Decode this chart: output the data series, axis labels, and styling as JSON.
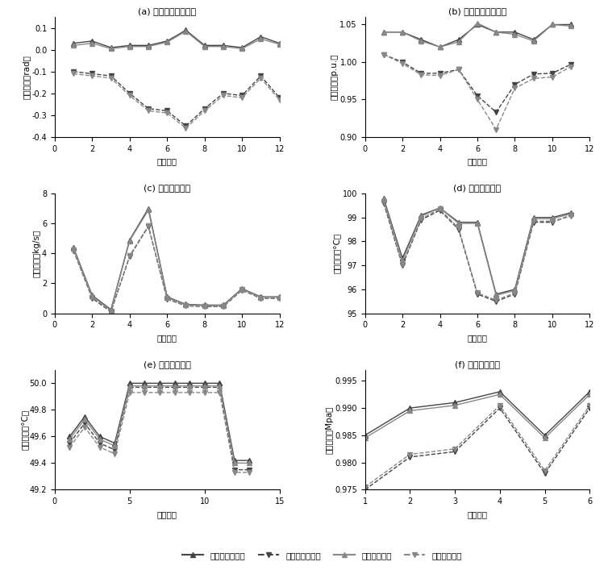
{
  "subplot_a": {
    "title": "(a) 电网节点电压相角",
    "xlabel": "节点编号",
    "ylabel": "电压相角（rad）",
    "xlim": [
      0,
      12
    ],
    "ylim": [
      -0.4,
      0.15
    ],
    "yticks": [
      -0.4,
      -0.3,
      -0.2,
      -0.1,
      0.0,
      0.1
    ],
    "xticks": [
      0,
      2,
      4,
      6,
      8,
      10,
      12
    ],
    "mc_upper": {
      "x": [
        1,
        2,
        3,
        4,
        5,
        6,
        7,
        8,
        9,
        10,
        11,
        12
      ],
      "y": [
        0.03,
        0.04,
        0.01,
        0.02,
        0.02,
        0.04,
        0.09,
        0.02,
        0.02,
        0.01,
        0.06,
        0.03
      ]
    },
    "mc_lower": {
      "x": [
        1,
        2,
        3,
        4,
        5,
        6,
        7,
        8,
        9,
        10,
        11,
        12
      ],
      "y": [
        -0.1,
        -0.11,
        -0.12,
        -0.2,
        -0.27,
        -0.28,
        -0.35,
        -0.27,
        -0.2,
        -0.21,
        -0.12,
        -0.22
      ]
    },
    "prop_upper": {
      "x": [
        1,
        2,
        3,
        4,
        5,
        6,
        7,
        8,
        9,
        10,
        11,
        12
      ],
      "y": [
        0.02,
        0.03,
        0.005,
        0.015,
        0.015,
        0.035,
        0.085,
        0.015,
        0.015,
        0.005,
        0.05,
        0.025
      ]
    },
    "prop_lower": {
      "x": [
        1,
        2,
        3,
        4,
        5,
        6,
        7,
        8,
        9,
        10,
        11,
        12
      ],
      "y": [
        -0.11,
        -0.12,
        -0.13,
        -0.21,
        -0.28,
        -0.29,
        -0.36,
        -0.28,
        -0.21,
        -0.22,
        -0.13,
        -0.23
      ]
    }
  },
  "subplot_b": {
    "title": "(b) 电网节点电压幅值",
    "xlabel": "节点编号",
    "ylabel": "电压幅值（p.u.）",
    "xlim": [
      0,
      12
    ],
    "ylim": [
      0.9,
      1.06
    ],
    "yticks": [
      0.9,
      0.95,
      1.0,
      1.05
    ],
    "xticks": [
      0,
      2,
      4,
      6,
      8,
      10,
      12
    ],
    "mc_upper": {
      "x": [
        1,
        2,
        3,
        4,
        5,
        6,
        7,
        8,
        9,
        10,
        11
      ],
      "y": [
        1.04,
        1.04,
        1.03,
        1.02,
        1.03,
        1.05,
        1.04,
        1.04,
        1.03,
        1.05,
        1.05
      ]
    },
    "mc_lower": {
      "x": [
        1,
        2,
        3,
        4,
        5,
        6,
        7,
        8,
        9,
        10,
        11
      ],
      "y": [
        1.01,
        1.0,
        0.985,
        0.985,
        0.99,
        0.955,
        0.933,
        0.97,
        0.984,
        0.985,
        0.997
      ]
    },
    "prop_upper": {
      "x": [
        1,
        2,
        3,
        4,
        5,
        6,
        7,
        8,
        9,
        10,
        11
      ],
      "y": [
        1.04,
        1.04,
        1.028,
        1.02,
        1.027,
        1.052,
        1.04,
        1.037,
        1.028,
        1.05,
        1.048
      ]
    },
    "prop_lower": {
      "x": [
        1,
        2,
        3,
        4,
        5,
        6,
        7,
        8,
        9,
        10,
        11
      ],
      "y": [
        1.01,
        0.998,
        0.983,
        0.982,
        0.99,
        0.95,
        0.91,
        0.965,
        0.978,
        0.98,
        0.994
      ]
    }
  },
  "subplot_c": {
    "title": "(c) 热网管道流量",
    "xlabel": "管道编号",
    "ylabel": "质量流量（kg/s）",
    "xlim": [
      0,
      12
    ],
    "ylim": [
      0,
      8
    ],
    "yticks": [
      0,
      2,
      4,
      6,
      8
    ],
    "xticks": [
      0,
      2,
      4,
      6,
      8,
      10,
      12
    ],
    "mc_upper": {
      "x": [
        1,
        2,
        3,
        4,
        5,
        6,
        7,
        8,
        9,
        10,
        11,
        12
      ],
      "y": [
        4.4,
        1.2,
        0.25,
        4.9,
        7.0,
        1.1,
        0.6,
        0.55,
        0.55,
        1.65,
        1.1,
        1.1
      ]
    },
    "mc_lower": {
      "x": [
        1,
        2,
        3,
        4,
        5,
        6,
        7,
        8,
        9,
        10,
        11,
        12
      ],
      "y": [
        4.2,
        1.0,
        0.1,
        3.8,
        5.8,
        0.95,
        0.5,
        0.45,
        0.45,
        1.55,
        1.0,
        1.0
      ]
    },
    "prop_upper": {
      "x": [
        1,
        2,
        3,
        4,
        5,
        6,
        7,
        8,
        9,
        10,
        11,
        12
      ],
      "y": [
        4.35,
        1.15,
        0.2,
        4.85,
        6.9,
        1.05,
        0.58,
        0.52,
        0.52,
        1.62,
        1.08,
        1.08
      ]
    },
    "prop_lower": {
      "x": [
        1,
        2,
        3,
        4,
        5,
        6,
        7,
        8,
        9,
        10,
        11,
        12
      ],
      "y": [
        4.25,
        1.05,
        0.15,
        3.85,
        5.85,
        0.98,
        0.52,
        0.47,
        0.47,
        1.57,
        1.02,
        1.02
      ]
    }
  },
  "subplot_d": {
    "title": "(d) 热网供热温度",
    "xlabel": "节点编号",
    "ylabel": "供热温度（°C）",
    "xlim": [
      0,
      12
    ],
    "ylim": [
      95,
      100
    ],
    "yticks": [
      95,
      96,
      97,
      98,
      99,
      100
    ],
    "xticks": [
      0,
      2,
      4,
      6,
      8,
      10,
      12
    ],
    "mc_upper": {
      "x": [
        1,
        2,
        3,
        4,
        5,
        6,
        7,
        8,
        9,
        10,
        11
      ],
      "y": [
        99.8,
        97.3,
        99.1,
        99.4,
        98.8,
        98.8,
        95.8,
        96.0,
        99.0,
        99.0,
        99.2
      ]
    },
    "mc_lower": {
      "x": [
        1,
        2,
        3,
        4,
        5,
        6,
        7,
        8,
        9,
        10,
        11
      ],
      "y": [
        99.6,
        97.0,
        98.9,
        99.3,
        98.5,
        95.8,
        95.5,
        95.8,
        98.8,
        98.8,
        99.1
      ]
    },
    "prop_upper": {
      "x": [
        1,
        2,
        3,
        4,
        5,
        6,
        7,
        8,
        9,
        10,
        11
      ],
      "y": [
        99.75,
        97.2,
        99.05,
        99.4,
        98.75,
        98.75,
        95.75,
        95.95,
        98.95,
        98.95,
        99.15
      ]
    },
    "prop_lower": {
      "x": [
        1,
        2,
        3,
        4,
        5,
        6,
        7,
        8,
        9,
        10,
        11
      ],
      "y": [
        99.65,
        97.05,
        98.95,
        99.35,
        98.55,
        95.85,
        95.55,
        95.85,
        98.85,
        98.85,
        99.05
      ]
    }
  },
  "subplot_e": {
    "title": "(e) 热网回热温度",
    "xlabel": "节点编号",
    "ylabel": "回热温度（°C）",
    "xlim": [
      0,
      15
    ],
    "ylim": [
      49.2,
      50.1
    ],
    "yticks": [
      49.2,
      49.4,
      49.6,
      49.8,
      50.0
    ],
    "xticks": [
      0,
      5,
      10,
      15
    ],
    "mc_upper": {
      "x": [
        1,
        2,
        3,
        4,
        5,
        6,
        7,
        8,
        9,
        10,
        11,
        12,
        13
      ],
      "y": [
        49.6,
        49.75,
        49.6,
        49.55,
        50.0,
        50.0,
        50.0,
        50.0,
        50.0,
        50.0,
        50.0,
        49.42,
        49.42
      ]
    },
    "mc_lower": {
      "x": [
        1,
        2,
        3,
        4,
        5,
        6,
        7,
        8,
        9,
        10,
        11,
        12,
        13
      ],
      "y": [
        49.55,
        49.7,
        49.55,
        49.5,
        49.97,
        49.97,
        49.97,
        49.97,
        49.97,
        49.97,
        49.97,
        49.35,
        49.35
      ]
    },
    "prop_upper": {
      "x": [
        1,
        2,
        3,
        4,
        5,
        6,
        7,
        8,
        9,
        10,
        11,
        12,
        13
      ],
      "y": [
        49.58,
        49.73,
        49.58,
        49.53,
        49.98,
        49.98,
        49.98,
        49.98,
        49.98,
        49.98,
        49.98,
        49.4,
        49.4
      ]
    },
    "prop_lower": {
      "x": [
        1,
        2,
        3,
        4,
        5,
        6,
        7,
        8,
        9,
        10,
        11,
        12,
        13
      ],
      "y": [
        49.52,
        49.67,
        49.52,
        49.47,
        49.93,
        49.93,
        49.93,
        49.93,
        49.93,
        49.93,
        49.93,
        49.33,
        49.33
      ]
    }
  },
  "subplot_f": {
    "title": "(f) 氢网节点气压",
    "xlabel": "节点编号",
    "ylabel": "管道气压（Mpa）",
    "xlim": [
      1,
      6
    ],
    "ylim": [
      0.975,
      0.997
    ],
    "yticks": [
      0.975,
      0.98,
      0.985,
      0.99,
      0.995
    ],
    "xticks": [
      1,
      2,
      3,
      4,
      5,
      6
    ],
    "mc_upper": {
      "x": [
        1,
        2,
        3,
        4,
        5,
        6
      ],
      "y": [
        0.985,
        0.99,
        0.991,
        0.993,
        0.985,
        0.993
      ]
    },
    "mc_lower": {
      "x": [
        1,
        2,
        3,
        4,
        5,
        6
      ],
      "y": [
        0.975,
        0.981,
        0.982,
        0.99,
        0.978,
        0.99
      ]
    },
    "prop_upper": {
      "x": [
        1,
        2,
        3,
        4,
        5,
        6
      ],
      "y": [
        0.9845,
        0.9895,
        0.9905,
        0.9925,
        0.9845,
        0.9925
      ]
    },
    "prop_lower": {
      "x": [
        1,
        2,
        3,
        4,
        5,
        6
      ],
      "y": [
        0.9755,
        0.9815,
        0.9825,
        0.9905,
        0.9785,
        0.9905
      ]
    }
  },
  "legend": {
    "mc_upper_label": "蒙特卡罗法上界",
    "mc_lower_label": "蒙特卡罗法下界",
    "prop_upper_label": "本文方法上界",
    "prop_lower_label": "本文方法下界"
  },
  "colors": {
    "mc": "#444444",
    "prop": "#888888"
  }
}
